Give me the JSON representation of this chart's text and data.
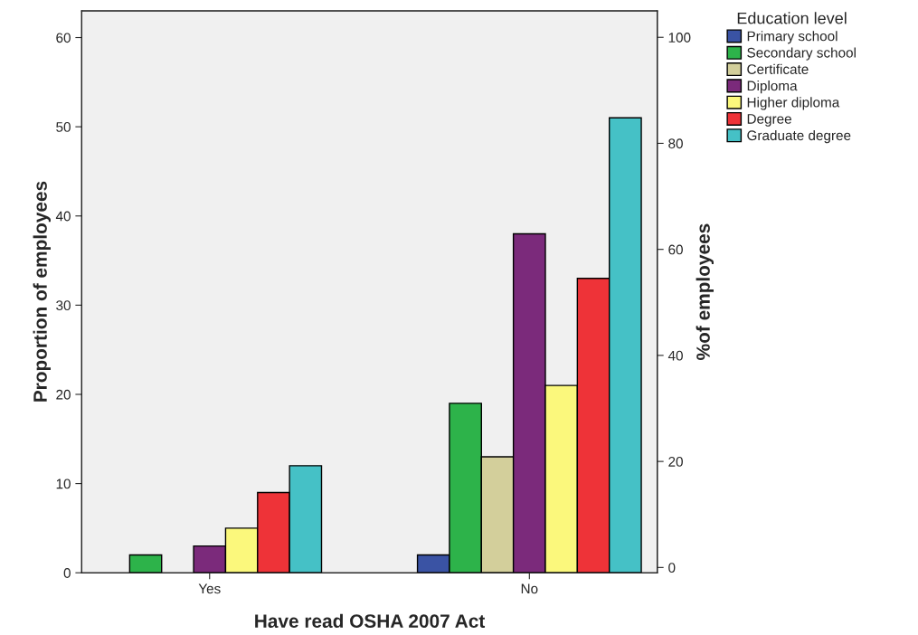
{
  "chart_data": {
    "type": "bar",
    "categories": [
      "Yes",
      "No"
    ],
    "xlabel": "Have read OSHA 2007 Act",
    "ylabel": "Proportion of employees",
    "y2label": "%of employees",
    "legend_title": "Education level",
    "legend": "top right",
    "grid": false,
    "ylim": [
      0,
      63
    ],
    "yticks": [
      0,
      10,
      20,
      30,
      40,
      50,
      60
    ],
    "y2lim": [
      -1,
      105
    ],
    "y2ticks": [
      0,
      20,
      40,
      60,
      80,
      100
    ],
    "series": [
      {
        "name": "Primary school",
        "color": "#3a53a4",
        "values": [
          null,
          2
        ]
      },
      {
        "name": "Secondary school",
        "color": "#2db34a",
        "values": [
          2,
          19
        ]
      },
      {
        "name": "Certificate",
        "color": "#d3cf9b",
        "values": [
          null,
          13
        ]
      },
      {
        "name": "Diploma",
        "color": "#7b2a7b",
        "values": [
          3,
          38
        ]
      },
      {
        "name": "Higher diploma",
        "color": "#fbf87c",
        "values": [
          5,
          21
        ]
      },
      {
        "name": "Degree",
        "color": "#ee3338",
        "values": [
          9,
          33
        ]
      },
      {
        "name": "Graduate degree",
        "color": "#45c1c6",
        "values": [
          12,
          51
        ]
      }
    ]
  }
}
